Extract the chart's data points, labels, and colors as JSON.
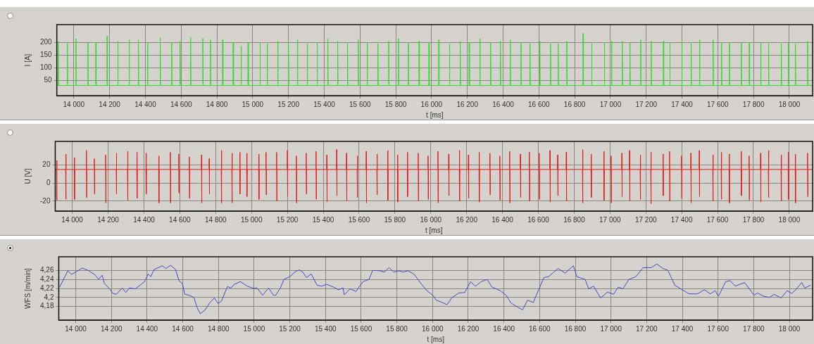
{
  "chart_data": [
    {
      "type": "line",
      "xlabel": "t [ms]",
      "ylabel": "I [A]",
      "color": "#2edc2e",
      "grid": true,
      "xlim": [
        13905,
        18130
      ],
      "ylim": [
        -10,
        270
      ],
      "yticks": [
        50,
        100,
        150,
        200
      ],
      "xticks": [
        {
          "value": 14000,
          "label": "14 000"
        },
        {
          "value": 14200,
          "label": "14 200"
        },
        {
          "value": 14400,
          "label": "14 400"
        },
        {
          "value": 14600,
          "label": "14 600"
        },
        {
          "value": 14800,
          "label": "14 800"
        },
        {
          "value": 15000,
          "label": "15 000"
        },
        {
          "value": 15200,
          "label": "15 200"
        },
        {
          "value": 15400,
          "label": "15 400"
        },
        {
          "value": 15600,
          "label": "15 600"
        },
        {
          "value": 15800,
          "label": "15 800"
        },
        {
          "value": 16000,
          "label": "16 000"
        },
        {
          "value": 16200,
          "label": "16 200"
        },
        {
          "value": 16400,
          "label": "16 400"
        },
        {
          "value": 16600,
          "label": "16 600"
        },
        {
          "value": 16800,
          "label": "16 800"
        },
        {
          "value": 17000,
          "label": "17 000"
        },
        {
          "value": 17200,
          "label": "17 200"
        },
        {
          "value": 17400,
          "label": "17 400"
        },
        {
          "value": 17600,
          "label": "17 600"
        },
        {
          "value": 17800,
          "label": "17 800"
        },
        {
          "value": 18000,
          "label": "18 000"
        }
      ],
      "x": [
        13905,
        13912,
        13913,
        13915,
        13963,
        13964,
        13966,
        14011,
        14012,
        14014,
        14078,
        14079,
        14081,
        14122,
        14123,
        14125,
        14185,
        14186,
        14188,
        14245,
        14246,
        14248,
        14308,
        14309,
        14311,
        14360,
        14361,
        14363,
        14411,
        14412,
        14414,
        14482,
        14483,
        14485,
        14546,
        14547,
        14549,
        14593,
        14594,
        14596,
        14652,
        14653,
        14655,
        14720,
        14721,
        14723,
        14763,
        14764,
        14766,
        14831,
        14832,
        14834,
        14890,
        14891,
        14893,
        14934,
        14935,
        14937,
        14973,
        14974,
        14976,
        15040,
        15041,
        15043,
        15080,
        15081,
        15083,
        15139,
        15140,
        15142,
        15199,
        15200,
        15202,
        15249,
        15250,
        15252,
        15304,
        15305,
        15307,
        15359,
        15360,
        15362,
        15419,
        15420,
        15422,
        15474,
        15475,
        15477,
        15529,
        15530,
        15532,
        15589,
        15590,
        15592,
        15639,
        15640,
        15642,
        15699,
        15700,
        15702,
        15759,
        15760,
        15762,
        15814,
        15815,
        15817,
        15869,
        15870,
        15872,
        15929,
        15930,
        15932,
        15984,
        15985,
        15987,
        16039,
        16040,
        16042,
        16099,
        16100,
        16102,
        16159,
        16160,
        16162,
        16209,
        16210,
        16212,
        16269,
        16270,
        16272,
        16329,
        16330,
        16332,
        16384,
        16385,
        16387,
        16439,
        16440,
        16442,
        16499,
        16500,
        16502,
        16549,
        16550,
        16552,
        16604,
        16605,
        16607,
        16664,
        16665,
        16667,
        16707,
        16708,
        16710,
        16755,
        16756,
        16758,
        16846,
        16847,
        16849,
        16894,
        16895,
        16897,
        16965,
        16966,
        16968,
        17005,
        17006,
        17008,
        17065,
        17066,
        17068,
        17108,
        17109,
        17111,
        17168,
        17169,
        17171,
        17227,
        17228,
        17230,
        17295,
        17296,
        17298,
        17331,
        17332,
        17334,
        17398,
        17399,
        17401,
        17450,
        17451,
        17453,
        17497,
        17498,
        17500,
        17573,
        17574,
        17576,
        17620,
        17621,
        17623,
        17664,
        17665,
        17667,
        17731,
        17732,
        17734,
        17775,
        17776,
        17778,
        17839,
        17840,
        17842,
        17883,
        17884,
        17886,
        17954,
        17955,
        17957,
        17994,
        17995,
        17997,
        18033,
        18034,
        18036,
        18101,
        18102,
        18104,
        18130
      ],
      "values": [
        30,
        30,
        205,
        30,
        30,
        200,
        30,
        30,
        215,
        30,
        30,
        200,
        30,
        30,
        200,
        30,
        30,
        225,
        30,
        30,
        205,
        30,
        30,
        210,
        30,
        30,
        210,
        30,
        30,
        200,
        30,
        30,
        220,
        30,
        30,
        200,
        30,
        30,
        205,
        30,
        30,
        220,
        30,
        30,
        215,
        30,
        30,
        210,
        30,
        30,
        210,
        30,
        30,
        200,
        30,
        30,
        185,
        30,
        30,
        200,
        30,
        30,
        200,
        30,
        30,
        195,
        30,
        30,
        205,
        30,
        30,
        200,
        30,
        30,
        210,
        30,
        30,
        195,
        30,
        30,
        200,
        30,
        30,
        215,
        30,
        30,
        205,
        30,
        30,
        200,
        30,
        30,
        210,
        30,
        30,
        200,
        30,
        30,
        195,
        30,
        30,
        205,
        30,
        30,
        215,
        30,
        30,
        200,
        30,
        30,
        205,
        30,
        30,
        200,
        30,
        30,
        210,
        30,
        30,
        195,
        30,
        30,
        205,
        30,
        30,
        200,
        30,
        30,
        215,
        30,
        30,
        200,
        30,
        30,
        205,
        30,
        30,
        210,
        30,
        30,
        200,
        30,
        30,
        195,
        30,
        30,
        205,
        30,
        30,
        195,
        30,
        30,
        195,
        30,
        30,
        205,
        30,
        30,
        235,
        30,
        30,
        200,
        30,
        30,
        200,
        30,
        30,
        205,
        30,
        30,
        205,
        30,
        30,
        200,
        30,
        30,
        210,
        30,
        30,
        205,
        30,
        30,
        205,
        30,
        30,
        200,
        30,
        30,
        205,
        30,
        30,
        200,
        30,
        30,
        210,
        30,
        30,
        210,
        30,
        30,
        200,
        30,
        30,
        200,
        30,
        30,
        200,
        30,
        30,
        200,
        30,
        30,
        200,
        30,
        30,
        200,
        30,
        30,
        195,
        30,
        30,
        200,
        30,
        30,
        195,
        30,
        30,
        205,
        30,
        30
      ]
    },
    {
      "type": "line",
      "xlabel": "t [ms]",
      "ylabel": "U [V]",
      "color": "#e31b1b",
      "grid": true,
      "xlim": [
        13905,
        18130
      ],
      "ylim": [
        -31,
        46
      ],
      "yticks": [
        -20,
        0,
        20
      ],
      "xticks": [
        {
          "value": 14000,
          "label": "14 000"
        },
        {
          "value": 14200,
          "label": "14 200"
        },
        {
          "value": 14400,
          "label": "14 400"
        },
        {
          "value": 14600,
          "label": "14 600"
        },
        {
          "value": 14800,
          "label": "14 800"
        },
        {
          "value": 15000,
          "label": "15 000"
        },
        {
          "value": 15200,
          "label": "15 200"
        },
        {
          "value": 15400,
          "label": "15 400"
        },
        {
          "value": 15600,
          "label": "15 600"
        },
        {
          "value": 15800,
          "label": "15 800"
        },
        {
          "value": 16000,
          "label": "16 000"
        },
        {
          "value": 16200,
          "label": "16 200"
        },
        {
          "value": 16400,
          "label": "16 400"
        },
        {
          "value": 16600,
          "label": "16 600"
        },
        {
          "value": 16800,
          "label": "16 800"
        },
        {
          "value": 17000,
          "label": "17 000"
        },
        {
          "value": 17200,
          "label": "17 200"
        },
        {
          "value": 17400,
          "label": "17 400"
        },
        {
          "value": 17600,
          "label": "17 600"
        },
        {
          "value": 17800,
          "label": "17 800"
        },
        {
          "value": 18000,
          "label": "18 000"
        }
      ],
      "x": [
        13905,
        13912,
        13913,
        13914,
        13915,
        13963,
        13964,
        13965,
        13966,
        14011,
        14012,
        14013,
        14014,
        14078,
        14079,
        14080,
        14081,
        14122,
        14123,
        14124,
        14125,
        14185,
        14186,
        14187,
        14188,
        14245,
        14246,
        14247,
        14248,
        14308,
        14309,
        14310,
        14311,
        14360,
        14361,
        14362,
        14363,
        14411,
        14412,
        14413,
        14414,
        14482,
        14483,
        14484,
        14485,
        14546,
        14547,
        14548,
        14549,
        14593,
        14594,
        14595,
        14596,
        14652,
        14653,
        14654,
        14655,
        14720,
        14721,
        14722,
        14723,
        14763,
        14764,
        14765,
        14766,
        14831,
        14832,
        14833,
        14834,
        14890,
        14891,
        14892,
        14893,
        14934,
        14935,
        14936,
        14937,
        14973,
        14974,
        14975,
        14976,
        15040,
        15041,
        15042,
        15043,
        15080,
        15081,
        15082,
        15083,
        15139,
        15140,
        15141,
        15142,
        15199,
        15200,
        15201,
        15202,
        15249,
        15250,
        15251,
        15252,
        15304,
        15305,
        15306,
        15307,
        15359,
        15360,
        15361,
        15362,
        15419,
        15420,
        15421,
        15422,
        15474,
        15475,
        15476,
        15477,
        15529,
        15530,
        15531,
        15532,
        15589,
        15590,
        15591,
        15592,
        15639,
        15640,
        15641,
        15642,
        15699,
        15700,
        15701,
        15702,
        15759,
        15760,
        15761,
        15762,
        15814,
        15815,
        15816,
        15817,
        15869,
        15870,
        15871,
        15872,
        15929,
        15930,
        15931,
        15932,
        15984,
        15985,
        15986,
        15987,
        16039,
        16040,
        16041,
        16042,
        16099,
        16100,
        16101,
        16102,
        16159,
        16160,
        16161,
        16162,
        16209,
        16210,
        16211,
        16212,
        16269,
        16270,
        16271,
        16272,
        16329,
        16330,
        16331,
        16332,
        16384,
        16385,
        16386,
        16387,
        16439,
        16440,
        16441,
        16442,
        16499,
        16500,
        16501,
        16502,
        16549,
        16550,
        16551,
        16552,
        16604,
        16605,
        16606,
        16607,
        16664,
        16665,
        16666,
        16667,
        16707,
        16708,
        16709,
        16710,
        16755,
        16756,
        16757,
        16758,
        16846,
        16847,
        16848,
        16849,
        16894,
        16895,
        16896,
        16897,
        16965,
        16966,
        16967,
        16968,
        17005,
        17006,
        17007,
        17008,
        17065,
        17066,
        17067,
        17068,
        17108,
        17109,
        17110,
        17111,
        17168,
        17169,
        17170,
        17171,
        17227,
        17228,
        17229,
        17230,
        17295,
        17296,
        17297,
        17298,
        17331,
        17332,
        17333,
        17334,
        17398,
        17399,
        17400,
        17401,
        17450,
        17451,
        17452,
        17453,
        17497,
        17498,
        17499,
        17500,
        17573,
        17574,
        17575,
        17576,
        17620,
        17621,
        17622,
        17623,
        17664,
        17665,
        17666,
        17667,
        17731,
        17732,
        17733,
        17734,
        17775,
        17776,
        17777,
        17778,
        17839,
        17840,
        17841,
        17842,
        17883,
        17884,
        17885,
        17886,
        17954,
        17955,
        17956,
        17957,
        17994,
        17995,
        17996,
        17997,
        18033,
        18034,
        18035,
        18036,
        18101,
        18102,
        18103,
        18104,
        18130
      ],
      "values": [
        15,
        15,
        25,
        -19,
        15,
        15,
        32,
        -18,
        15,
        15,
        28,
        -18,
        15,
        15,
        36,
        -16,
        15,
        15,
        27,
        -12,
        15,
        15,
        31,
        -22,
        15,
        15,
        33,
        -12,
        15,
        15,
        35,
        -19,
        15,
        15,
        34,
        -17,
        15,
        15,
        33,
        -12,
        15,
        15,
        30,
        -22,
        15,
        15,
        34,
        -22,
        15,
        15,
        32,
        -11,
        15,
        15,
        29,
        -17,
        15,
        15,
        31,
        -22,
        15,
        15,
        27,
        -12,
        15,
        15,
        36,
        -22,
        15,
        15,
        33,
        -22,
        15,
        15,
        34,
        -12,
        15,
        15,
        33,
        -15,
        15,
        15,
        32,
        -18,
        15,
        15,
        34,
        -13,
        15,
        15,
        34,
        -20,
        15,
        15,
        36,
        -15,
        15,
        15,
        30,
        -22,
        15,
        15,
        33,
        -12,
        15,
        15,
        35,
        -18,
        15,
        15,
        31,
        -21,
        15,
        15,
        37,
        -14,
        15,
        15,
        33,
        -20,
        15,
        15,
        30,
        -16,
        15,
        15,
        35,
        -22,
        15,
        15,
        32,
        -13,
        15,
        15,
        36,
        -19,
        15,
        15,
        31,
        -21,
        15,
        15,
        34,
        -15,
        15,
        15,
        33,
        -20,
        15,
        15,
        30,
        -18,
        15,
        15,
        35,
        -22,
        15,
        15,
        32,
        -14,
        15,
        15,
        36,
        -20,
        15,
        15,
        31,
        -17,
        15,
        15,
        34,
        -21,
        15,
        15,
        33,
        -13,
        15,
        15,
        30,
        -19,
        15,
        15,
        35,
        -22,
        15,
        15,
        32,
        -16,
        15,
        15,
        34,
        -20,
        15,
        15,
        33,
        -18,
        15,
        15,
        36,
        -21,
        15,
        15,
        31,
        -14,
        15,
        15,
        34,
        -20,
        15,
        15,
        37,
        -22,
        15,
        15,
        32,
        -16,
        15,
        15,
        35,
        -19,
        15,
        15,
        30,
        -22,
        15,
        15,
        33,
        -15,
        15,
        15,
        36,
        -20,
        15,
        15,
        31,
        -18,
        15,
        15,
        34,
        -23,
        15,
        15,
        32,
        -14,
        15,
        15,
        35,
        -20,
        15,
        15,
        30,
        -17,
        15,
        15,
        33,
        -22,
        15,
        15,
        36,
        -15,
        15,
        15,
        31,
        -20,
        15,
        15,
        34,
        -18,
        15,
        15,
        32,
        -22,
        15,
        15,
        35,
        -14,
        15,
        15,
        30,
        -19,
        15,
        15,
        33,
        -21,
        15,
        15,
        36,
        -16,
        15,
        15,
        31,
        -20,
        15,
        15,
        34,
        -18,
        15,
        15,
        32,
        -22,
        15,
        15,
        33,
        -15,
        15,
        15
      ]
    },
    {
      "type": "line",
      "xlabel": "t [ms]",
      "ylabel": "WFS [m/min]",
      "color": "#4646c8",
      "grid": true,
      "xlim": [
        13905,
        18130
      ],
      "ylim": [
        4.15,
        4.29
      ],
      "yticks": [
        {
          "value": 4.18,
          "label": "4,18"
        },
        {
          "value": 4.2,
          "label": "4,2"
        },
        {
          "value": 4.22,
          "label": "4,22"
        },
        {
          "value": 4.24,
          "label": "4,24"
        },
        {
          "value": 4.26,
          "label": "4,26"
        }
      ],
      "xticks": [
        {
          "value": 14000,
          "label": "14 000"
        },
        {
          "value": 14200,
          "label": "14 200"
        },
        {
          "value": 14400,
          "label": "14 400"
        },
        {
          "value": 14600,
          "label": "14 600"
        },
        {
          "value": 14800,
          "label": "14 800"
        },
        {
          "value": 15000,
          "label": "15 000"
        },
        {
          "value": 15200,
          "label": "15 200"
        },
        {
          "value": 15400,
          "label": "15 400"
        },
        {
          "value": 15600,
          "label": "15 600"
        },
        {
          "value": 15800,
          "label": "15 800"
        },
        {
          "value": 16000,
          "label": "16 000"
        },
        {
          "value": 16200,
          "label": "16 200"
        },
        {
          "value": 16400,
          "label": "16 400"
        },
        {
          "value": 16600,
          "label": "16 600"
        },
        {
          "value": 16800,
          "label": "16 800"
        },
        {
          "value": 17000,
          "label": "17 000"
        },
        {
          "value": 17200,
          "label": "17 200"
        },
        {
          "value": 17400,
          "label": "17 400"
        },
        {
          "value": 17600,
          "label": "17 600"
        },
        {
          "value": 17800,
          "label": "17 800"
        },
        {
          "value": 18000,
          "label": "18 000"
        }
      ],
      "x": [
        13910,
        13956,
        13976,
        14003,
        14036,
        14069,
        14108,
        14128,
        14148,
        14161,
        14195,
        14208,
        14228,
        14261,
        14281,
        14301,
        14334,
        14360,
        14386,
        14406,
        14420,
        14440,
        14486,
        14505,
        14532,
        14559,
        14579,
        14598,
        14611,
        14638,
        14664,
        14678,
        14698,
        14724,
        14751,
        14777,
        14797,
        14817,
        14850,
        14870,
        14889,
        14922,
        14962,
        14996,
        15016,
        15048,
        15081,
        15108,
        15121,
        15147,
        15167,
        15200,
        15233,
        15253,
        15273,
        15293,
        15320,
        15353,
        15379,
        15406,
        15445,
        15472,
        15498,
        15505,
        15538,
        15571,
        15591,
        15611,
        15644,
        15664,
        15704,
        15730,
        15756,
        15783,
        15810,
        15836,
        15862,
        15895,
        15935,
        15968,
        16001,
        16021,
        16048,
        16081,
        16107,
        16147,
        16180,
        16213,
        16240,
        16273,
        16306,
        16333,
        16379,
        16412,
        16439,
        16479,
        16505,
        16532,
        16565,
        16592,
        16624,
        16650,
        16703,
        16743,
        16789,
        16809,
        16855,
        16875,
        16902,
        16942,
        16981,
        17014,
        17041,
        17067,
        17100,
        17140,
        17180,
        17226,
        17257,
        17292,
        17319,
        17358,
        17391,
        17438,
        17484,
        17524,
        17557,
        17583,
        17603,
        17643,
        17669,
        17696,
        17749,
        17802,
        17821,
        17855,
        17888,
        17914,
        17954,
        17987,
        18014,
        18040,
        18069,
        18086,
        18119
      ],
      "values": [
        4.223,
        4.259,
        4.251,
        4.257,
        4.265,
        4.26,
        4.25,
        4.24,
        4.249,
        4.231,
        4.217,
        4.209,
        4.207,
        4.221,
        4.211,
        4.221,
        4.219,
        4.227,
        4.235,
        4.252,
        4.246,
        4.262,
        4.27,
        4.264,
        4.271,
        4.262,
        4.237,
        4.231,
        4.207,
        4.205,
        4.199,
        4.18,
        4.164,
        4.172,
        4.188,
        4.199,
        4.187,
        4.192,
        4.224,
        4.221,
        4.229,
        4.235,
        4.225,
        4.22,
        4.221,
        4.205,
        4.221,
        4.205,
        4.205,
        4.221,
        4.24,
        4.246,
        4.258,
        4.261,
        4.256,
        4.244,
        4.252,
        4.227,
        4.225,
        4.229,
        4.223,
        4.217,
        4.221,
        4.206,
        4.219,
        4.213,
        4.225,
        4.235,
        4.24,
        4.26,
        4.259,
        4.256,
        4.266,
        4.256,
        4.259,
        4.256,
        4.259,
        4.252,
        4.231,
        4.215,
        4.205,
        4.194,
        4.19,
        4.184,
        4.199,
        4.21,
        4.211,
        4.235,
        4.225,
        4.235,
        4.24,
        4.223,
        4.215,
        4.205,
        4.188,
        4.178,
        4.173,
        4.194,
        4.189,
        4.215,
        4.244,
        4.246,
        4.264,
        4.254,
        4.27,
        4.246,
        4.24,
        4.219,
        4.225,
        4.199,
        4.212,
        4.207,
        4.223,
        4.219,
        4.24,
        4.246,
        4.266,
        4.266,
        4.274,
        4.264,
        4.26,
        4.227,
        4.219,
        4.208,
        4.208,
        4.217,
        4.208,
        4.215,
        4.203,
        4.235,
        4.237,
        4.225,
        4.233,
        4.205,
        4.21,
        4.203,
        4.2,
        4.207,
        4.199,
        4.215,
        4.209,
        4.219,
        4.233,
        4.221,
        4.227
      ]
    }
  ]
}
